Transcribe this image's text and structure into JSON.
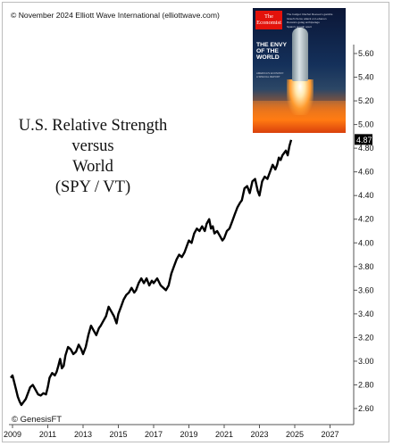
{
  "copyright": "© November 2024 Elliott Wave International (elliottwave.com)",
  "source_credit": "© GenesisFT",
  "colors": {
    "line": "#000000",
    "last_value_bg": "#000000",
    "last_value_text": "#ffffff",
    "axis": "#555555"
  },
  "cover": {
    "logo_line1": "The",
    "logo_line2": "Economist",
    "headline": "THE ENVY OF THE WORLD",
    "teasers": [
      "The budget: Rachel Reeves's gamble",
      "Israel's fierce attack on Lebanon",
      "Russia's gulag archipelago",
      "Spain's growth spurt"
    ],
    "tagline": "AMERICA'S ECONOMY: A SPECIAL REPORT"
  },
  "chart_data": {
    "type": "line",
    "title_lines": [
      "U.S. Relative Strength",
      "versus",
      "World",
      "(SPY / VT)"
    ],
    "xlabel": "",
    "ylabel": "",
    "x_ticks": [
      "2009",
      "2011",
      "2013",
      "2015",
      "2017",
      "2019",
      "2021",
      "2023",
      "2025",
      "2027"
    ],
    "y_ticks": [
      "2.60",
      "2.80",
      "3.00",
      "3.20",
      "3.40",
      "3.60",
      "3.80",
      "4.00",
      "4.20",
      "4.40",
      "4.60",
      "4.80",
      "5.00",
      "5.20",
      "5.40",
      "5.60"
    ],
    "xlim": [
      2009.0,
      2028.0
    ],
    "ylim": [
      2.53,
      5.64
    ],
    "grid": false,
    "last_value": "4.87",
    "series": [
      {
        "x": [
          2008.9,
          2009.0,
          2009.1,
          2009.2,
          2009.3,
          2009.4,
          2009.5,
          2009.6,
          2009.75,
          2009.9,
          2010.0,
          2010.15,
          2010.3,
          2010.45,
          2010.6,
          2010.75,
          2010.9,
          2011.0,
          2011.1,
          2011.25,
          2011.4,
          2011.5,
          2011.6,
          2011.7,
          2011.8,
          2011.9,
          2012.0,
          2012.15,
          2012.3,
          2012.45,
          2012.6,
          2012.75,
          2012.9,
          2013.0,
          2013.15,
          2013.3,
          2013.45,
          2013.6,
          2013.75,
          2013.9,
          2014.0,
          2014.15,
          2014.3,
          2014.45,
          2014.6,
          2014.75,
          2014.9,
          2015.0,
          2015.15,
          2015.3,
          2015.45,
          2015.6,
          2015.75,
          2015.9,
          2016.0,
          2016.15,
          2016.3,
          2016.45,
          2016.6,
          2016.75,
          2016.9,
          2017.0,
          2017.2,
          2017.4,
          2017.55,
          2017.7,
          2017.85,
          2018.0,
          2018.15,
          2018.3,
          2018.45,
          2018.6,
          2018.75,
          2018.9,
          2019.0,
          2019.15,
          2019.3,
          2019.45,
          2019.6,
          2019.75,
          2019.9,
          2020.0,
          2020.15,
          2020.25,
          2020.35,
          2020.45,
          2020.6,
          2020.75,
          2020.9,
          2021.0,
          2021.15,
          2021.3,
          2021.45,
          2021.6,
          2021.75,
          2021.9,
          2022.0,
          2022.15,
          2022.3,
          2022.45,
          2022.6,
          2022.75,
          2022.9,
          2023.0,
          2023.15,
          2023.3,
          2023.45,
          2023.6,
          2023.75,
          2023.9,
          2024.0,
          2024.1,
          2024.2,
          2024.3,
          2024.4,
          2024.5,
          2024.6,
          2024.7,
          2024.8
        ],
        "y": [
          2.86,
          2.88,
          2.82,
          2.76,
          2.7,
          2.66,
          2.63,
          2.65,
          2.68,
          2.74,
          2.78,
          2.8,
          2.76,
          2.72,
          2.71,
          2.73,
          2.72,
          2.78,
          2.86,
          2.9,
          2.88,
          2.91,
          2.96,
          3.02,
          2.94,
          2.96,
          3.05,
          3.12,
          3.1,
          3.06,
          3.08,
          3.14,
          3.1,
          3.06,
          3.12,
          3.22,
          3.3,
          3.26,
          3.22,
          3.28,
          3.3,
          3.34,
          3.38,
          3.46,
          3.42,
          3.38,
          3.32,
          3.4,
          3.46,
          3.52,
          3.56,
          3.58,
          3.62,
          3.58,
          3.6,
          3.66,
          3.7,
          3.66,
          3.7,
          3.64,
          3.68,
          3.66,
          3.7,
          3.64,
          3.62,
          3.6,
          3.64,
          3.74,
          3.8,
          3.86,
          3.9,
          3.88,
          3.92,
          3.98,
          4.02,
          4.0,
          4.08,
          4.12,
          4.1,
          4.14,
          4.1,
          4.16,
          4.2,
          4.12,
          4.14,
          4.08,
          4.1,
          4.06,
          4.02,
          4.04,
          4.1,
          4.12,
          4.18,
          4.24,
          4.3,
          4.34,
          4.36,
          4.46,
          4.48,
          4.42,
          4.52,
          4.54,
          4.44,
          4.4,
          4.52,
          4.56,
          4.54,
          4.6,
          4.66,
          4.62,
          4.66,
          4.72,
          4.7,
          4.74,
          4.76,
          4.78,
          4.74,
          4.82,
          4.87
        ]
      }
    ]
  }
}
